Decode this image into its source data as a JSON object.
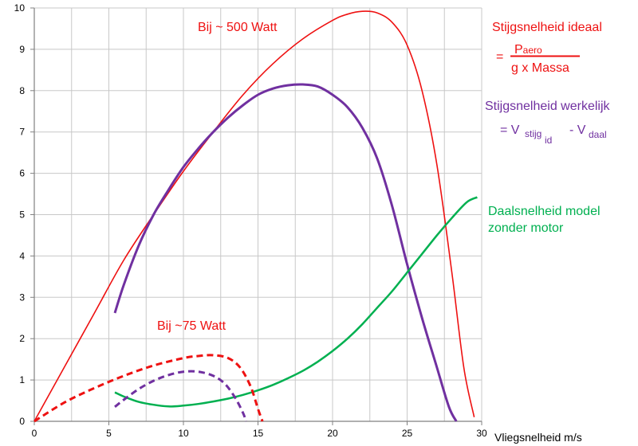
{
  "chart_data": {
    "type": "line",
    "xlabel": "Vliegsnelheid m/s",
    "ylabel": "",
    "xlim": [
      0,
      30
    ],
    "ylim": [
      0,
      10
    ],
    "xticks": [
      0,
      5,
      10,
      15,
      20,
      25,
      30
    ],
    "yticks": [
      0,
      1,
      2,
      3,
      4,
      5,
      6,
      7,
      8,
      9,
      10
    ],
    "grid": true,
    "colors": {
      "red": "#ee1111",
      "purple": "#7030a0",
      "green": "#00b050",
      "grid": "#c8c8c8",
      "axis": "#808080"
    },
    "series": [
      {
        "id": "ideal-500",
        "color": "#ee1111",
        "width": 1.6,
        "dash": false,
        "points": [
          [
            0,
            0
          ],
          [
            2,
            1.3
          ],
          [
            4,
            2.6
          ],
          [
            6,
            3.9
          ],
          [
            8,
            5.0
          ],
          [
            10,
            6.05
          ],
          [
            12,
            7.0
          ],
          [
            14,
            7.9
          ],
          [
            16,
            8.65
          ],
          [
            18,
            9.25
          ],
          [
            20,
            9.7
          ],
          [
            21,
            9.85
          ],
          [
            22,
            9.92
          ],
          [
            23,
            9.88
          ],
          [
            24,
            9.65
          ],
          [
            25,
            9.1
          ],
          [
            26,
            8.0
          ],
          [
            27,
            6.2
          ],
          [
            28,
            3.6
          ],
          [
            28.8,
            1.3
          ],
          [
            29.5,
            0.1
          ]
        ]
      },
      {
        "id": "real-500",
        "color": "#7030a0",
        "width": 3,
        "dash": false,
        "points": [
          [
            5.4,
            2.62
          ],
          [
            6,
            3.3
          ],
          [
            7,
            4.25
          ],
          [
            8,
            5.0
          ],
          [
            9,
            5.6
          ],
          [
            10,
            6.15
          ],
          [
            11,
            6.6
          ],
          [
            12,
            7.0
          ],
          [
            13,
            7.35
          ],
          [
            14,
            7.65
          ],
          [
            15,
            7.9
          ],
          [
            16,
            8.05
          ],
          [
            17,
            8.13
          ],
          [
            18,
            8.15
          ],
          [
            19,
            8.1
          ],
          [
            20,
            7.9
          ],
          [
            21,
            7.6
          ],
          [
            22,
            7.1
          ],
          [
            23,
            6.35
          ],
          [
            24,
            5.2
          ],
          [
            25,
            3.8
          ],
          [
            26,
            2.5
          ],
          [
            27,
            1.3
          ],
          [
            27.8,
            0.35
          ],
          [
            28.3,
            0
          ]
        ]
      },
      {
        "id": "sink",
        "color": "#00b050",
        "width": 2.5,
        "dash": false,
        "points": [
          [
            5.4,
            0.7
          ],
          [
            6,
            0.6
          ],
          [
            7,
            0.47
          ],
          [
            8,
            0.4
          ],
          [
            9,
            0.36
          ],
          [
            10,
            0.38
          ],
          [
            11,
            0.42
          ],
          [
            12,
            0.48
          ],
          [
            13,
            0.55
          ],
          [
            14,
            0.64
          ],
          [
            15,
            0.75
          ],
          [
            16,
            0.88
          ],
          [
            17,
            1.04
          ],
          [
            18,
            1.22
          ],
          [
            19,
            1.44
          ],
          [
            20,
            1.7
          ],
          [
            21,
            2.0
          ],
          [
            22,
            2.35
          ],
          [
            23,
            2.75
          ],
          [
            24,
            3.15
          ],
          [
            25,
            3.6
          ],
          [
            26,
            4.05
          ],
          [
            27,
            4.5
          ],
          [
            28,
            4.92
          ],
          [
            29,
            5.3
          ],
          [
            29.7,
            5.42
          ]
        ]
      },
      {
        "id": "ideal-75",
        "color": "#ee1111",
        "width": 3,
        "dash": true,
        "points": [
          [
            0,
            0
          ],
          [
            2,
            0.45
          ],
          [
            4,
            0.8
          ],
          [
            6,
            1.1
          ],
          [
            8,
            1.35
          ],
          [
            10,
            1.53
          ],
          [
            11,
            1.58
          ],
          [
            12,
            1.6
          ],
          [
            13,
            1.53
          ],
          [
            13.8,
            1.3
          ],
          [
            14.5,
            0.85
          ],
          [
            15,
            0.3
          ],
          [
            15.3,
            0
          ]
        ]
      },
      {
        "id": "real-75",
        "color": "#7030a0",
        "width": 3,
        "dash": true,
        "points": [
          [
            5.4,
            0.35
          ],
          [
            6,
            0.52
          ],
          [
            7,
            0.78
          ],
          [
            8,
            0.98
          ],
          [
            9,
            1.12
          ],
          [
            10,
            1.2
          ],
          [
            11,
            1.2
          ],
          [
            12,
            1.1
          ],
          [
            12.8,
            0.9
          ],
          [
            13.5,
            0.55
          ],
          [
            14,
            0.2
          ],
          [
            14.2,
            0
          ]
        ]
      }
    ],
    "annotations": {
      "bij500": "Bij ~ 500 Watt",
      "bij75": "Bij ~75 Watt",
      "ideal_title": "Stijgsnelheid ideaal",
      "ideal_eq": "=",
      "ideal_num": "P",
      "ideal_num_sub": "aero",
      "ideal_den": "g x Massa",
      "real_title": "Stijgsnelheid werkelijk",
      "real_eq": "= V",
      "real_sub1": "stijg",
      "real_sub2": "id",
      "real_minus": "- V",
      "real_sub3": "daal",
      "sink_line1": "Daalsnelheid model",
      "sink_line2": "zonder motor"
    }
  }
}
